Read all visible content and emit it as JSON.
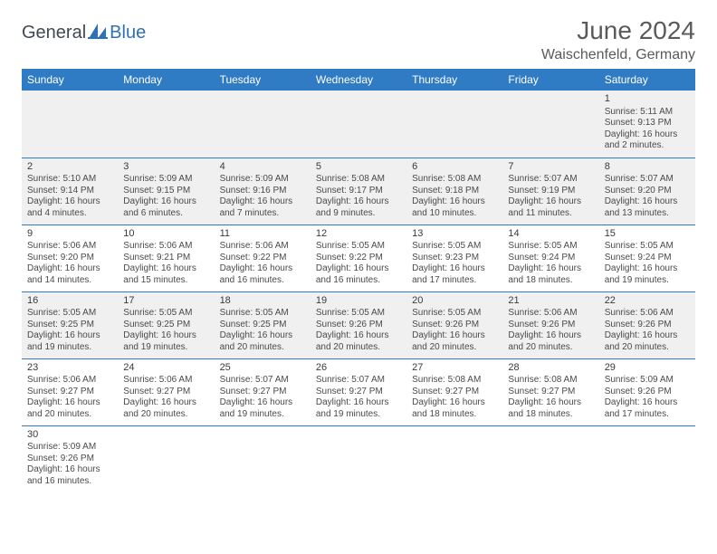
{
  "logo": {
    "part1": "General",
    "part2": "Blue"
  },
  "title": "June 2024",
  "location": "Waischenfeld, Germany",
  "colors": {
    "header_bg": "#2f7bc4",
    "header_text": "#ffffff",
    "cell_border": "#2f7bc4",
    "shade_bg": "#f0f0f0",
    "text": "#4a4a4a",
    "logo_blue": "#2f71b8",
    "logo_gray": "#3f4a55"
  },
  "weekdays": [
    "Sunday",
    "Monday",
    "Tuesday",
    "Wednesday",
    "Thursday",
    "Friday",
    "Saturday"
  ],
  "weeks": [
    [
      null,
      null,
      null,
      null,
      null,
      null,
      {
        "d": "1",
        "sr": "5:11 AM",
        "ss": "9:13 PM",
        "dl": "16 hours and 2 minutes."
      }
    ],
    [
      {
        "d": "2",
        "sr": "5:10 AM",
        "ss": "9:14 PM",
        "dl": "16 hours and 4 minutes."
      },
      {
        "d": "3",
        "sr": "5:09 AM",
        "ss": "9:15 PM",
        "dl": "16 hours and 6 minutes."
      },
      {
        "d": "4",
        "sr": "5:09 AM",
        "ss": "9:16 PM",
        "dl": "16 hours and 7 minutes."
      },
      {
        "d": "5",
        "sr": "5:08 AM",
        "ss": "9:17 PM",
        "dl": "16 hours and 9 minutes."
      },
      {
        "d": "6",
        "sr": "5:08 AM",
        "ss": "9:18 PM",
        "dl": "16 hours and 10 minutes."
      },
      {
        "d": "7",
        "sr": "5:07 AM",
        "ss": "9:19 PM",
        "dl": "16 hours and 11 minutes."
      },
      {
        "d": "8",
        "sr": "5:07 AM",
        "ss": "9:20 PM",
        "dl": "16 hours and 13 minutes."
      }
    ],
    [
      {
        "d": "9",
        "sr": "5:06 AM",
        "ss": "9:20 PM",
        "dl": "16 hours and 14 minutes."
      },
      {
        "d": "10",
        "sr": "5:06 AM",
        "ss": "9:21 PM",
        "dl": "16 hours and 15 minutes."
      },
      {
        "d": "11",
        "sr": "5:06 AM",
        "ss": "9:22 PM",
        "dl": "16 hours and 16 minutes."
      },
      {
        "d": "12",
        "sr": "5:05 AM",
        "ss": "9:22 PM",
        "dl": "16 hours and 16 minutes."
      },
      {
        "d": "13",
        "sr": "5:05 AM",
        "ss": "9:23 PM",
        "dl": "16 hours and 17 minutes."
      },
      {
        "d": "14",
        "sr": "5:05 AM",
        "ss": "9:24 PM",
        "dl": "16 hours and 18 minutes."
      },
      {
        "d": "15",
        "sr": "5:05 AM",
        "ss": "9:24 PM",
        "dl": "16 hours and 19 minutes."
      }
    ],
    [
      {
        "d": "16",
        "sr": "5:05 AM",
        "ss": "9:25 PM",
        "dl": "16 hours and 19 minutes."
      },
      {
        "d": "17",
        "sr": "5:05 AM",
        "ss": "9:25 PM",
        "dl": "16 hours and 19 minutes."
      },
      {
        "d": "18",
        "sr": "5:05 AM",
        "ss": "9:25 PM",
        "dl": "16 hours and 20 minutes."
      },
      {
        "d": "19",
        "sr": "5:05 AM",
        "ss": "9:26 PM",
        "dl": "16 hours and 20 minutes."
      },
      {
        "d": "20",
        "sr": "5:05 AM",
        "ss": "9:26 PM",
        "dl": "16 hours and 20 minutes."
      },
      {
        "d": "21",
        "sr": "5:06 AM",
        "ss": "9:26 PM",
        "dl": "16 hours and 20 minutes."
      },
      {
        "d": "22",
        "sr": "5:06 AM",
        "ss": "9:26 PM",
        "dl": "16 hours and 20 minutes."
      }
    ],
    [
      {
        "d": "23",
        "sr": "5:06 AM",
        "ss": "9:27 PM",
        "dl": "16 hours and 20 minutes."
      },
      {
        "d": "24",
        "sr": "5:06 AM",
        "ss": "9:27 PM",
        "dl": "16 hours and 20 minutes."
      },
      {
        "d": "25",
        "sr": "5:07 AM",
        "ss": "9:27 PM",
        "dl": "16 hours and 19 minutes."
      },
      {
        "d": "26",
        "sr": "5:07 AM",
        "ss": "9:27 PM",
        "dl": "16 hours and 19 minutes."
      },
      {
        "d": "27",
        "sr": "5:08 AM",
        "ss": "9:27 PM",
        "dl": "16 hours and 18 minutes."
      },
      {
        "d": "28",
        "sr": "5:08 AM",
        "ss": "9:27 PM",
        "dl": "16 hours and 18 minutes."
      },
      {
        "d": "29",
        "sr": "5:09 AM",
        "ss": "9:26 PM",
        "dl": "16 hours and 17 minutes."
      }
    ],
    [
      {
        "d": "30",
        "sr": "5:09 AM",
        "ss": "9:26 PM",
        "dl": "16 hours and 16 minutes."
      },
      null,
      null,
      null,
      null,
      null,
      null
    ]
  ],
  "labels": {
    "sunrise": "Sunrise: ",
    "sunset": "Sunset: ",
    "daylight": "Daylight: "
  }
}
